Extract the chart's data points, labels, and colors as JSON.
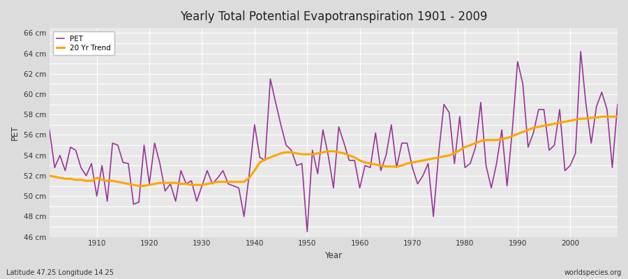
{
  "title": "Yearly Total Potential Evapotranspiration 1901 - 2009",
  "xlabel": "Year",
  "ylabel": "PET",
  "subtitle": "Latitude 47.25 Longitude 14.25",
  "watermark": "worldspecies.org",
  "pet_color": "#993399",
  "trend_color": "#FFA500",
  "bg_color": "#DCDCDC",
  "plot_bg_color": "#E8E8E8",
  "ylim": [
    46,
    66.5
  ],
  "years": [
    1901,
    1902,
    1903,
    1904,
    1905,
    1906,
    1907,
    1908,
    1909,
    1910,
    1911,
    1912,
    1913,
    1914,
    1915,
    1916,
    1917,
    1918,
    1919,
    1920,
    1921,
    1922,
    1923,
    1924,
    1925,
    1926,
    1927,
    1928,
    1929,
    1930,
    1931,
    1932,
    1933,
    1934,
    1935,
    1936,
    1937,
    1938,
    1939,
    1940,
    1941,
    1942,
    1943,
    1944,
    1945,
    1946,
    1947,
    1948,
    1949,
    1950,
    1951,
    1952,
    1953,
    1954,
    1955,
    1956,
    1957,
    1958,
    1959,
    1960,
    1961,
    1962,
    1963,
    1964,
    1965,
    1966,
    1967,
    1968,
    1969,
    1970,
    1971,
    1972,
    1973,
    1974,
    1975,
    1976,
    1977,
    1978,
    1979,
    1980,
    1981,
    1982,
    1983,
    1984,
    1985,
    1986,
    1987,
    1988,
    1989,
    1990,
    1991,
    1992,
    1993,
    1994,
    1995,
    1996,
    1997,
    1998,
    1999,
    2000,
    2001,
    2002,
    2003,
    2004,
    2005,
    2006,
    2007,
    2008,
    2009
  ],
  "pet_values": [
    56.5,
    52.8,
    54.0,
    52.5,
    54.8,
    54.5,
    52.8,
    52.0,
    53.2,
    50.0,
    53.0,
    49.5,
    55.2,
    55.0,
    53.3,
    53.2,
    49.2,
    49.4,
    55.0,
    51.2,
    55.2,
    53.2,
    50.5,
    51.2,
    49.5,
    52.5,
    51.2,
    51.5,
    49.5,
    51.0,
    52.5,
    51.2,
    51.8,
    52.5,
    51.2,
    51.0,
    50.8,
    48.0,
    52.2,
    57.0,
    53.8,
    53.5,
    61.5,
    59.2,
    57.0,
    55.0,
    54.5,
    53.0,
    53.2,
    46.5,
    54.5,
    52.2,
    56.5,
    54.0,
    50.8,
    56.8,
    55.2,
    53.5,
    53.5,
    50.8,
    53.0,
    52.8,
    56.2,
    52.5,
    54.0,
    57.0,
    52.8,
    55.2,
    55.2,
    52.8,
    51.2,
    52.0,
    53.2,
    48.0,
    54.2,
    59.0,
    58.2,
    53.2,
    57.8,
    52.8,
    53.2,
    54.8,
    59.2,
    53.0,
    50.8,
    53.2,
    56.5,
    51.0,
    56.5,
    63.2,
    61.0,
    54.8,
    56.2,
    58.5,
    58.5,
    54.5,
    55.0,
    58.5,
    52.5,
    53.0,
    54.2,
    64.2,
    59.0,
    55.2,
    58.8,
    60.2,
    58.5,
    52.8,
    59.0
  ],
  "trend_years": [
    1901,
    1902,
    1903,
    1904,
    1905,
    1906,
    1907,
    1908,
    1909,
    1910,
    1911,
    1912,
    1913,
    1914,
    1915,
    1916,
    1917,
    1918,
    1919,
    1920,
    1921,
    1922,
    1923,
    1924,
    1925,
    1926,
    1927,
    1928,
    1929,
    1930,
    1931,
    1932,
    1933,
    1934,
    1935,
    1936,
    1937,
    1938,
    1939,
    1940,
    1941,
    1942,
    1943,
    1944,
    1945,
    1946,
    1947,
    1948,
    1949,
    1950,
    1951,
    1952,
    1953,
    1954,
    1955,
    1956,
    1957,
    1958,
    1959,
    1960,
    1961,
    1962,
    1963,
    1964,
    1965,
    1966,
    1967,
    1968,
    1969,
    1970,
    1971,
    1972,
    1973,
    1974,
    1975,
    1976,
    1977,
    1978,
    1979,
    1980,
    1981,
    1982,
    1983,
    1984,
    1985,
    1986,
    1987,
    1988,
    1989,
    1990,
    1991,
    1992,
    1993,
    1994,
    1995,
    1996,
    1997,
    1998,
    1999,
    2000,
    2001,
    2002,
    2003,
    2004,
    2005,
    2006,
    2007,
    2008,
    2009
  ],
  "trend_values": [
    52.0,
    51.9,
    51.8,
    51.7,
    51.7,
    51.6,
    51.6,
    51.5,
    51.5,
    51.8,
    51.6,
    51.5,
    51.5,
    51.4,
    51.3,
    51.2,
    51.1,
    51.0,
    51.0,
    51.1,
    51.2,
    51.3,
    51.3,
    51.3,
    51.3,
    51.2,
    51.2,
    51.1,
    51.1,
    51.1,
    51.2,
    51.3,
    51.4,
    51.4,
    51.4,
    51.4,
    51.4,
    51.4,
    51.8,
    52.5,
    53.3,
    53.6,
    53.8,
    54.0,
    54.2,
    54.3,
    54.3,
    54.2,
    54.1,
    54.1,
    54.1,
    54.2,
    54.3,
    54.4,
    54.4,
    54.3,
    54.2,
    54.0,
    53.8,
    53.5,
    53.3,
    53.2,
    53.1,
    53.0,
    52.9,
    52.9,
    52.9,
    53.0,
    53.2,
    53.3,
    53.4,
    53.5,
    53.6,
    53.7,
    53.8,
    53.9,
    54.0,
    54.2,
    54.5,
    54.8,
    55.0,
    55.2,
    55.4,
    55.5,
    55.5,
    55.5,
    55.6,
    55.7,
    55.9,
    56.1,
    56.3,
    56.5,
    56.7,
    56.8,
    56.9,
    57.0,
    57.1,
    57.2,
    57.3,
    57.4,
    57.5,
    57.6,
    57.6,
    57.7,
    57.7,
    57.8,
    57.8,
    57.8,
    57.8
  ]
}
